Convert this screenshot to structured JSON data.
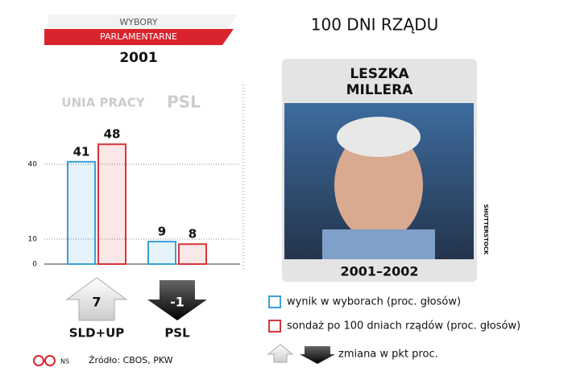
{
  "chart_data": {
    "type": "bar",
    "header": {
      "line1": "WYBORY",
      "line2": "PARLAMENTARNE",
      "year": "2001"
    },
    "logos": [
      "UNIA PRACY",
      "PSL"
    ],
    "categories": [
      "SLD+UP",
      "PSL"
    ],
    "series": [
      {
        "name": "wynik w wyborach (proc. głosów)",
        "color": "#3aa0d8",
        "values": [
          41,
          9
        ]
      },
      {
        "name": "sondaż po 100 dniach rządów (proc. głosów)",
        "color": "#d8363a",
        "values": [
          48,
          8
        ]
      }
    ],
    "change": {
      "values": [
        7,
        -1
      ],
      "legend": "zmiana w pkt proc."
    },
    "ylim": [
      0,
      50
    ],
    "yticks": [
      0,
      10,
      40
    ],
    "grid": true,
    "source": "Źródło: CBOS, PKW",
    "credit": "NS"
  },
  "panel": {
    "title": "100 DNI RZĄDU",
    "name1": "LESZKA",
    "name2": "MILLERA",
    "years": "2001–2002",
    "photo_credit": "SHUTTERSTOCK"
  }
}
